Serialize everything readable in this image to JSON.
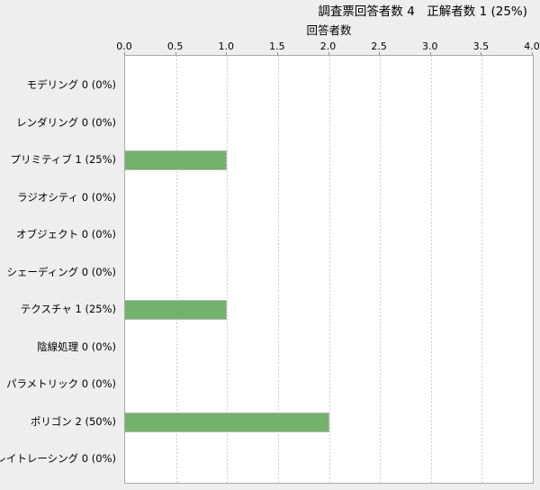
{
  "chart_data": {
    "type": "bar",
    "orientation": "horizontal",
    "title": "調査票回答者数 4　正解者数 1 (25%)",
    "axis_label": "回答者数",
    "xlabel": "回答者数",
    "ylabel": "",
    "xlim": [
      0,
      4
    ],
    "xtick_labels": [
      "0.0",
      "0.5",
      "1.0",
      "1.5",
      "2.0",
      "2.5",
      "3.0",
      "3.5",
      "4.0"
    ],
    "grid": "vertical-dashed",
    "legend": "none",
    "categories": [
      "モデリング 0 (0%)",
      "レンダリング 0 (0%)",
      "プリミティブ 1 (25%)",
      "ラジオシティ 0 (0%)",
      "オブジェクト 0 (0%)",
      "シェーディング 0 (0%)",
      "テクスチャ 1 (25%)",
      "陰線処理 0 (0%)",
      "パラメトリック 0 (0%)",
      "ポリゴン 2 (50%)",
      "レイトレーシング 0 (0%)"
    ],
    "values": [
      0,
      0,
      1,
      0,
      0,
      0,
      1,
      0,
      0,
      2,
      0
    ],
    "colors": {
      "bar_fill": "#73b26b",
      "bar_outline": "#b5b5b5",
      "plot_background": "#ffffff",
      "page_background": "#eeeeee",
      "plot_border": "#a9a9a9",
      "gridline": "#cdcdcd",
      "text": "#000000"
    }
  }
}
